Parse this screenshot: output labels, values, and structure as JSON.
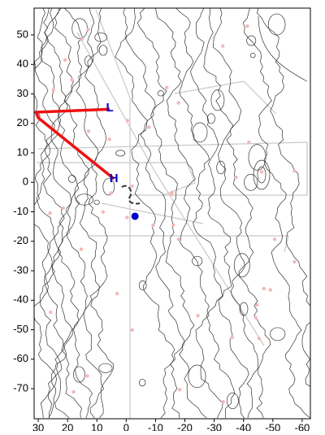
{
  "chart_data": {
    "type": "map",
    "xlim": [
      31.4,
      -62.8
    ],
    "ylim": [
      -80.2,
      59.1
    ],
    "xticks": [
      30,
      20,
      10,
      0,
      -10,
      -20,
      -30,
      -40,
      -50,
      -60
    ],
    "yticks": [
      50,
      40,
      30,
      20,
      10,
      0,
      -10,
      -20,
      -30,
      -40,
      -50,
      -60,
      -70
    ],
    "track": {
      "color": "#ee1111",
      "x": [
        5.6,
        30.8,
        30.0,
        4.2
      ],
      "y": [
        24.8,
        23.8,
        21.9,
        1.2
      ]
    },
    "labels": [
      {
        "text": "L",
        "x": 5.6,
        "y": 25.2,
        "color": "#0000cc"
      },
      {
        "text": "H",
        "x": 4.2,
        "y": 1.2,
        "color": "#0000cc"
      }
    ],
    "marker": {
      "x": -3.0,
      "y": -11.5,
      "color": "#0000cc"
    }
  }
}
